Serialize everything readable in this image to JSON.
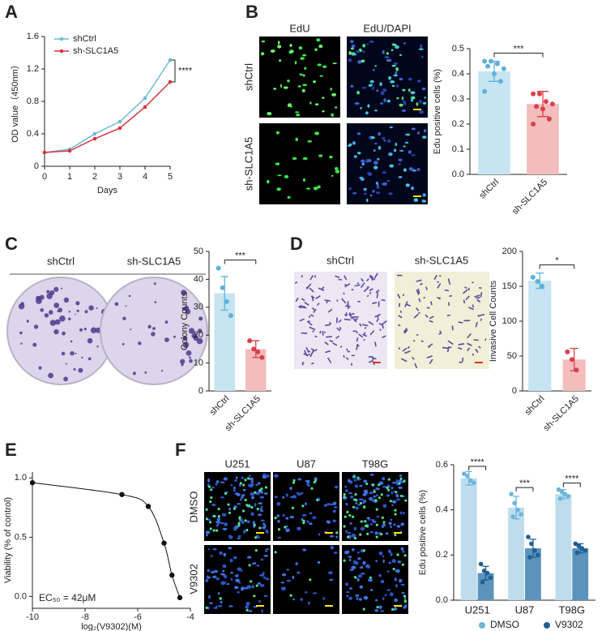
{
  "figure": {
    "panels": [
      "A",
      "B",
      "C",
      "D",
      "E",
      "F"
    ],
    "b_images": {
      "columns": [
        "EdU",
        "EdU/DAPI"
      ],
      "rows": [
        "shCtrl",
        "sh-SLC1A5"
      ]
    },
    "c_images": {
      "columns": [
        "shCtrl",
        "sh-SLC1A5"
      ]
    },
    "d_images": {
      "columns": [
        "shCtrl",
        "sh-SLC1A5"
      ]
    },
    "f_images": {
      "columns": [
        "U251",
        "U87",
        "T98G"
      ],
      "rows": [
        "DMSO",
        "V9302"
      ]
    }
  },
  "chart_data": [
    {
      "type": "line",
      "x": [
        0,
        1,
        2,
        3,
        4,
        5
      ],
      "xlim": [
        0,
        5
      ],
      "xticks": [
        0,
        1,
        2,
        3,
        4,
        5
      ],
      "ylim": [
        0,
        1.6
      ],
      "yticks": [
        0,
        0.4,
        0.8,
        1.2,
        1.6
      ],
      "x_label": "Days",
      "y_label": "OD value（450nm）",
      "annotation": "****",
      "series": [
        {
          "name": "shCtrl",
          "color": "#6bbcd6",
          "values": [
            0.17,
            0.21,
            0.4,
            0.55,
            0.84,
            1.31
          ]
        },
        {
          "name": "sh-SLC1A5",
          "color": "#d6353f",
          "values": [
            0.17,
            0.19,
            0.34,
            0.47,
            0.73,
            1.04
          ]
        }
      ]
    },
    {
      "type": "bar",
      "categories": [
        "shCtrl",
        "sh-SLC1A5"
      ],
      "values": [
        0.41,
        0.28
      ],
      "errors": [
        0.04,
        0.05
      ],
      "points": [
        [
          0.45,
          0.45,
          0.44,
          0.42,
          0.43,
          0.4,
          0.37,
          0.33
        ],
        [
          0.32,
          0.32,
          0.29,
          0.28,
          0.27,
          0.26,
          0.22,
          0.2
        ]
      ],
      "colors": [
        "#c6e4f1",
        "#f3bcbd"
      ],
      "point_colors": [
        "#5cb3d9",
        "#d8414a"
      ],
      "ylim": [
        0,
        0.5
      ],
      "yticks": [
        {
          "value": 0,
          "label": "0.0"
        },
        0.1,
        0.2,
        0.3,
        0.4,
        0.5
      ],
      "y_label": "Edu positive cells (%)",
      "annotation": "***"
    },
    {
      "type": "bar",
      "categories": [
        "shCtrl",
        "sh-SLC1A5"
      ],
      "values": [
        35,
        15
      ],
      "errors": [
        6,
        3
      ],
      "points": [
        [
          44,
          37,
          32,
          27
        ],
        [
          18,
          15,
          14,
          12
        ]
      ],
      "colors": [
        "#c6e4f1",
        "#f3bcbd"
      ],
      "point_colors": [
        "#5cb3d9",
        "#d8414a"
      ],
      "ylim": [
        0,
        50
      ],
      "yticks": [
        0,
        10,
        20,
        30,
        40,
        50
      ],
      "y_label": "Colony Counts",
      "annotation": "***"
    },
    {
      "type": "bar",
      "categories": [
        "shCtrl",
        "sh-SLC1A5"
      ],
      "values": [
        158,
        45
      ],
      "errors": [
        11,
        16
      ],
      "points": [
        [
          163,
          157,
          150
        ],
        [
          56,
          45,
          30
        ]
      ],
      "colors": [
        "#c6e4f1",
        "#f3bcbd"
      ],
      "point_colors": [
        "#5cb3d9",
        "#d8414a"
      ],
      "ylim": [
        0,
        200
      ],
      "yticks": [
        0,
        50,
        100,
        150,
        200
      ],
      "y_label": "Invasive Cell Counts",
      "annotation": "*"
    },
    {
      "type": "scatter",
      "x": [
        -10,
        -6.6,
        -5.6,
        -5,
        -4.7,
        -4.4
      ],
      "y": [
        0.96,
        0.86,
        0.76,
        0.45,
        0.18,
        -0.01
      ],
      "color": "#111111",
      "xlim": [
        -10,
        -4
      ],
      "xticks": [
        -10,
        -8,
        -6,
        -4
      ],
      "ylim": [
        -0.1,
        1.05
      ],
      "yticks": [
        {
          "value": 0,
          "label": "0.0"
        },
        0.5,
        {
          "value": 1,
          "label": "1.0"
        }
      ],
      "x_label": "log₂(V9302)(M)",
      "y_label": "Viability (% of control)",
      "annotation": "EC₅₀ = 42μM"
    },
    {
      "type": "grouped_bar",
      "categories": [
        "U251",
        "U87",
        "T98G"
      ],
      "series": [
        {
          "name": "DMSO",
          "color": "#bddcec",
          "point_color": "#6cb6dc",
          "values": [
            0.54,
            0.41,
            0.47
          ],
          "errors": [
            0.03,
            0.05,
            0.02
          ],
          "points": [
            [
              0.56,
              0.55,
              0.53,
              0.52
            ],
            [
              0.47,
              0.43,
              0.4,
              0.38,
              0.37
            ],
            [
              0.49,
              0.48,
              0.47,
              0.46,
              0.45
            ]
          ]
        },
        {
          "name": "V9302",
          "color": "#5b93bd",
          "point_color": "#1f5f93",
          "values": [
            0.12,
            0.23,
            0.23
          ],
          "errors": [
            0.03,
            0.04,
            0.02
          ],
          "points": [
            [
              0.16,
              0.13,
              0.12,
              0.1,
              0.08
            ],
            [
              0.28,
              0.25,
              0.22,
              0.2,
              0.19
            ],
            [
              0.25,
              0.24,
              0.23,
              0.22,
              0.21
            ]
          ]
        }
      ],
      "ylim": [
        0,
        0.6
      ],
      "yticks": [
        {
          "value": 0,
          "label": "0.0"
        },
        0.2,
        0.4,
        0.6
      ],
      "y_label": "Edu positive cells (%)",
      "annotations": [
        "****",
        "***",
        "****"
      ]
    }
  ]
}
